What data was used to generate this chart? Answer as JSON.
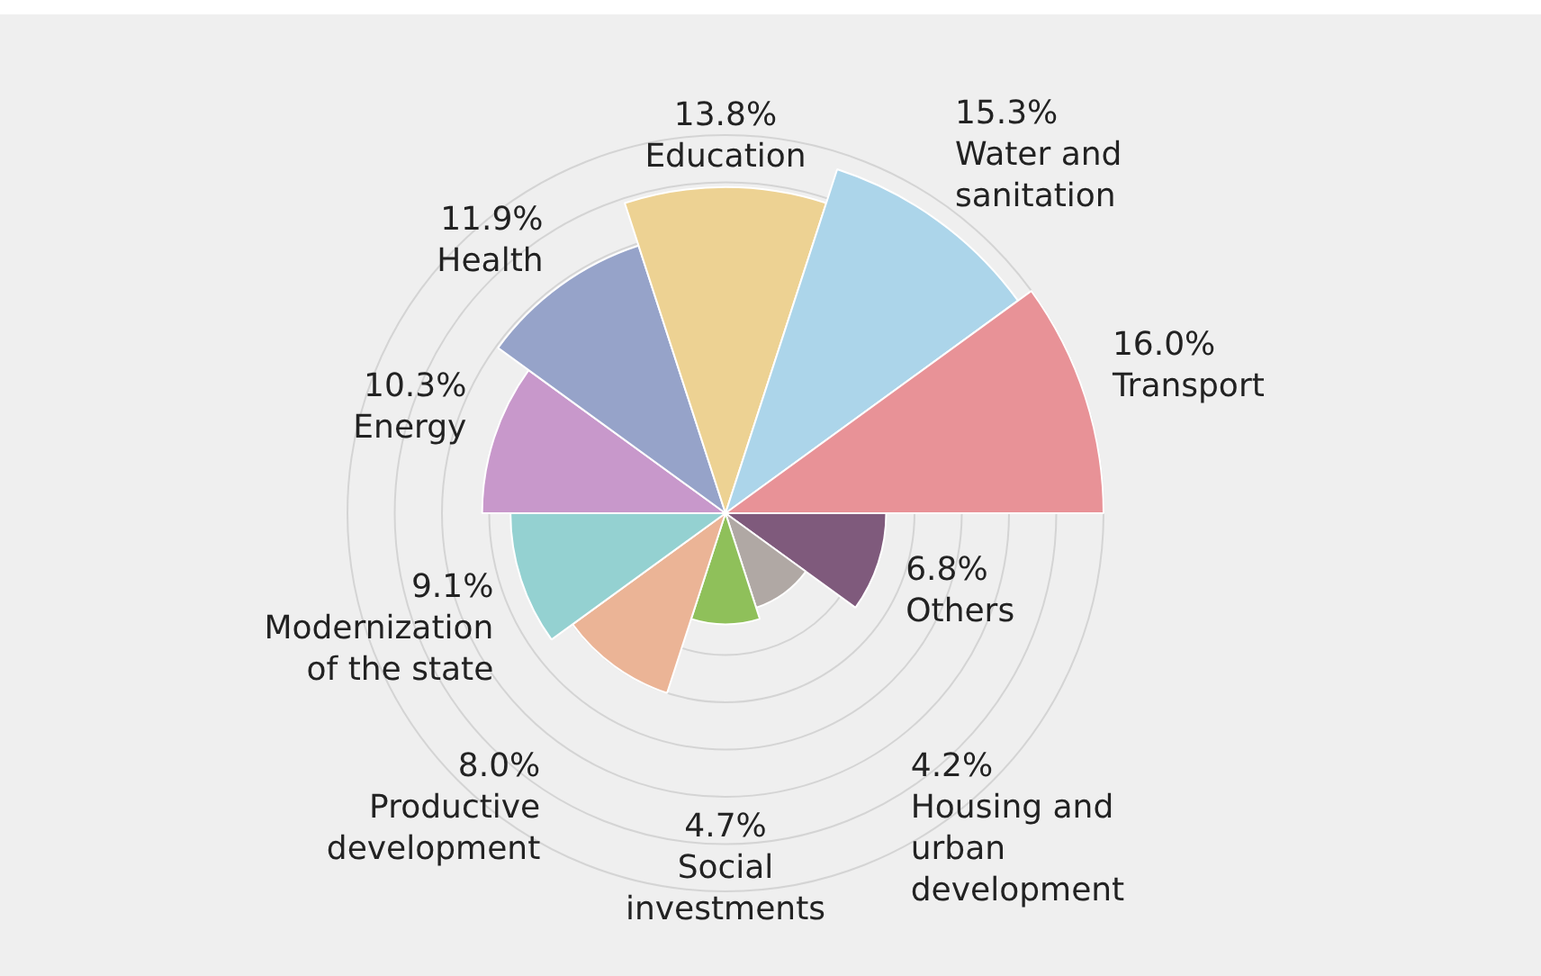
{
  "chart_data": {
    "type": "other",
    "categories": [
      "Others",
      "Housing and urban development",
      "Social investments",
      "Productive development",
      "Modernization of the state",
      "Energy",
      "Health",
      "Education",
      "Water and sanitation",
      "Transport"
    ],
    "values": [
      6.8,
      4.2,
      4.7,
      8.0,
      9.1,
      10.3,
      11.9,
      13.8,
      15.3,
      16.0
    ],
    "value_labels": [
      "6.8%",
      "4.2%",
      "4.7%",
      "8.0%",
      "9.1%",
      "10.3%",
      "11.9%",
      "13.8%",
      "15.3%",
      "16.0%"
    ],
    "colors": [
      "#7f5a7c",
      "#b0a8a4",
      "#8fc05a",
      "#ebb496",
      "#94d1d1",
      "#c898cb",
      "#96a3c9",
      "#edd293",
      "#acd5ea",
      "#e89297"
    ],
    "data_labels": true,
    "legend": false
  }
}
